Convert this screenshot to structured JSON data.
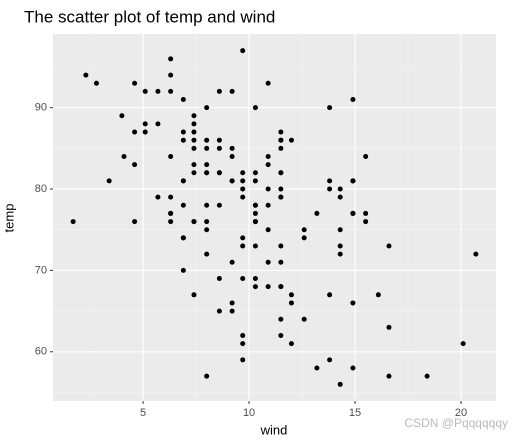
{
  "chart_data": {
    "type": "scatter",
    "title": "The scatter plot of temp and wind",
    "x_label": "wind",
    "y_label": "temp",
    "x": [
      7.4,
      8.0,
      12.6,
      11.5,
      14.3,
      14.9,
      8.6,
      13.8,
      20.1,
      8.6,
      6.9,
      9.7,
      9.2,
      10.9,
      13.2,
      11.5,
      12.0,
      18.4,
      11.5,
      9.7,
      9.7,
      16.6,
      9.7,
      12.0,
      16.6,
      14.9,
      8.0,
      12.0,
      14.9,
      5.7,
      7.4,
      8.6,
      9.7,
      16.1,
      9.2,
      8.6,
      14.3,
      9.7,
      6.9,
      13.8,
      11.5,
      10.9,
      9.2,
      8.0,
      13.8,
      11.5,
      14.9,
      20.7,
      9.2,
      11.5,
      10.3,
      6.3,
      1.7,
      4.6,
      6.3,
      8.0,
      8.0,
      10.3,
      11.5,
      14.9,
      8.0,
      4.1,
      9.2,
      9.2,
      10.9,
      4.6,
      10.9,
      5.1,
      6.3,
      5.7,
      7.4,
      8.6,
      14.3,
      14.9,
      14.9,
      14.3,
      6.9,
      10.3,
      6.3,
      5.1,
      11.5,
      6.9,
      9.7,
      11.5,
      8.6,
      8.0,
      8.6,
      12.0,
      7.4,
      7.4,
      7.4,
      9.2,
      6.9,
      13.8,
      7.4,
      6.9,
      7.4,
      4.6,
      4.0,
      10.3,
      8.0,
      8.6,
      11.5,
      11.5,
      11.5,
      9.7,
      11.5,
      10.3,
      6.3,
      7.4,
      10.9,
      10.3,
      15.5,
      14.3,
      12.6,
      9.7,
      3.4,
      8.0,
      5.7,
      9.7,
      2.3,
      6.3,
      6.3,
      6.9,
      5.1,
      2.8,
      4.6,
      7.4,
      15.5,
      10.9,
      10.3,
      10.9,
      9.7,
      14.9,
      15.5,
      6.3,
      10.9,
      11.5,
      6.9,
      13.8,
      10.3,
      10.3,
      8.0,
      12.6,
      9.2,
      10.3,
      10.3,
      16.6,
      6.9,
      13.2,
      14.3,
      8.0,
      11.5
    ],
    "values": [
      67,
      72,
      74,
      62,
      56,
      66,
      65,
      59,
      61,
      69,
      74,
      69,
      66,
      68,
      58,
      64,
      66,
      57,
      68,
      62,
      59,
      73,
      61,
      61,
      57,
      58,
      57,
      67,
      81,
      79,
      76,
      78,
      74,
      67,
      84,
      85,
      79,
      82,
      87,
      90,
      87,
      93,
      92,
      82,
      80,
      79,
      77,
      72,
      65,
      73,
      76,
      77,
      76,
      76,
      76,
      75,
      78,
      73,
      80,
      77,
      83,
      84,
      85,
      81,
      84,
      83,
      83,
      88,
      92,
      92,
      89,
      82,
      73,
      81,
      91,
      80,
      81,
      82,
      84,
      87,
      85,
      74,
      81,
      82,
      86,
      85,
      82,
      86,
      88,
      86,
      83,
      81,
      81,
      81,
      82,
      86,
      85,
      87,
      89,
      90,
      90,
      92,
      86,
      86,
      82,
      80,
      79,
      77,
      79,
      76,
      78,
      78,
      77,
      72,
      75,
      79,
      81,
      86,
      88,
      97,
      94,
      96,
      94,
      91,
      92,
      93,
      93,
      87,
      84,
      80,
      78,
      75,
      73,
      81,
      76,
      77,
      71,
      71,
      78,
      67,
      76,
      68,
      82,
      64,
      71,
      81,
      69,
      63,
      70,
      77,
      75,
      76,
      68
    ],
    "color": "#000000",
    "xlim": [
      0.75,
      21.65
    ],
    "xticks": [
      5,
      10,
      15,
      20
    ],
    "ylim": [
      53.95,
      99.05
    ],
    "yticks": [
      60,
      70,
      80,
      90
    ],
    "grid": true,
    "watermark": "CSDN @Pqqqqqqy"
  }
}
